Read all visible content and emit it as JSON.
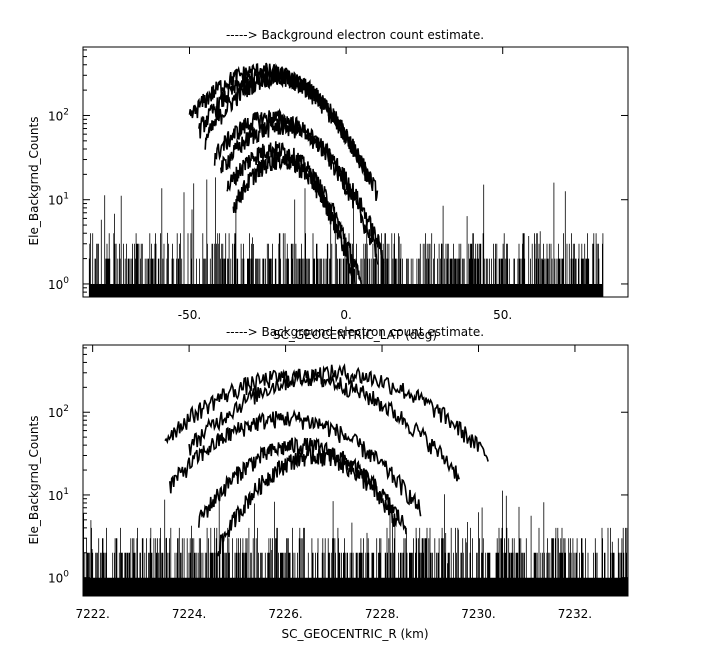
{
  "chart_data": [
    {
      "type": "line",
      "title": "-----> Background electron count estimate.",
      "xlabel": "SC_GEOCENTRIC_LAT (deg)",
      "ylabel": "Ele_Backgrnd_Counts",
      "y_scale": "log",
      "xlim": [
        -84,
        90
      ],
      "ylim": [
        0.7,
        650
      ],
      "x_ticks": [
        -50,
        0,
        50
      ],
      "x_tick_labels": [
        "-50.",
        "0.",
        "50."
      ],
      "y_ticks": [
        1,
        10,
        100
      ],
      "y_tick_labels": [
        "10^0",
        "10^1",
        "10^2"
      ],
      "background_noise": {
        "x_range": [
          -82,
          82
        ],
        "level_range": [
          1,
          5
        ],
        "spike_max": 15
      },
      "series": [
        {
          "peak_x": -27,
          "peak_y": 340,
          "x_range": [
            -50,
            10
          ]
        },
        {
          "peak_x": -24,
          "peak_y": 310,
          "x_range": [
            -47,
            8
          ]
        },
        {
          "peak_x": -22,
          "peak_y": 290,
          "x_range": [
            -45,
            7
          ]
        },
        {
          "peak_x": -24,
          "peak_y": 95,
          "x_range": [
            -42,
            10
          ]
        },
        {
          "peak_x": -21,
          "peak_y": 75,
          "x_range": [
            -40,
            12
          ]
        },
        {
          "peak_x": -23,
          "peak_y": 40,
          "x_range": [
            -38,
            5
          ]
        },
        {
          "peak_x": -21,
          "peak_y": 30,
          "x_range": [
            -36,
            3
          ]
        }
      ]
    },
    {
      "type": "line",
      "title": "-----> Background electron count estimate.",
      "xlabel": "SC_GEOCENTRIC_R (km)",
      "ylabel": "Ele_Backgrnd_Counts",
      "y_scale": "log",
      "xlim": [
        7221.8,
        7233.1
      ],
      "ylim": [
        0.6,
        650
      ],
      "x_ticks": [
        7222,
        7224,
        7226,
        7228,
        7230,
        7232
      ],
      "x_tick_labels": [
        "7222.",
        "7224.",
        "7226.",
        "7228.",
        "7230.",
        "7232."
      ],
      "y_ticks": [
        1,
        10,
        100
      ],
      "y_tick_labels": [
        "10^0",
        "10^1",
        "10^2"
      ],
      "background_noise": {
        "x_range": [
          7221.8,
          7233.1
        ],
        "level_range": [
          1,
          5
        ],
        "spike_max": 8
      },
      "series": [
        {
          "peak_x": 7227.0,
          "peak_y": 300,
          "x_range": [
            7224.0,
            7230.2
          ]
        },
        {
          "peak_x": 7226.2,
          "peak_y": 270,
          "x_range": [
            7223.5,
            7229.6
          ]
        },
        {
          "peak_x": 7226.0,
          "peak_y": 85,
          "x_range": [
            7223.6,
            7228.8
          ]
        },
        {
          "peak_x": 7226.3,
          "peak_y": 40,
          "x_range": [
            7224.2,
            7228.5
          ]
        },
        {
          "peak_x": 7226.6,
          "peak_y": 30,
          "x_range": [
            7224.6,
            7228.3
          ]
        }
      ]
    }
  ]
}
